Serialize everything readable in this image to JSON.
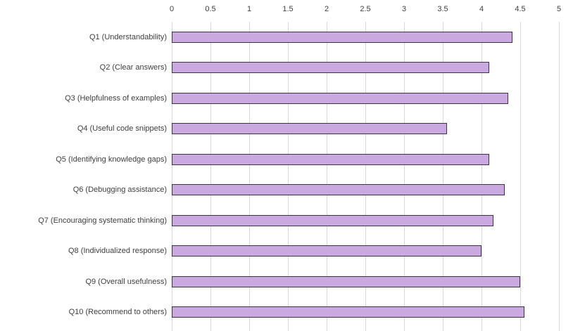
{
  "chart_data": {
    "type": "bar",
    "orientation": "horizontal",
    "title": "",
    "xlabel": "",
    "ylabel": "",
    "categories": [
      "Q1 (Understandability)",
      "Q2 (Clear answers)",
      "Q3 (Helpfulness of examples)",
      "Q4 (Useful code snippets)",
      "Q5 (Identifying knowledge gaps)",
      "Q6 (Debugging assistance)",
      "Q7 (Encouraging systematic thinking)",
      "Q8 (Individualized response)",
      "Q9 (Overall usefulness)",
      "Q10 (Recommend to others)"
    ],
    "values": [
      4.4,
      4.1,
      4.35,
      3.55,
      4.1,
      4.3,
      4.15,
      4.0,
      4.5,
      4.55
    ],
    "xlim": [
      0,
      5
    ],
    "xticks": [
      0,
      0.5,
      1,
      1.5,
      2,
      2.5,
      3,
      3.5,
      4,
      4.5,
      5
    ],
    "xtick_labels": [
      "0",
      "0.5",
      "1",
      "1.5",
      "2",
      "2.5",
      "3",
      "3.5",
      "4",
      "4.5",
      "5"
    ],
    "axis_position": "top",
    "grid": true,
    "legend": false,
    "colors": {
      "bar_fill": "#CAA8E0",
      "bar_border": "#3A3444",
      "gridline": "#D9D9D9",
      "text": "#404040",
      "background": "#FFFFFF"
    }
  }
}
